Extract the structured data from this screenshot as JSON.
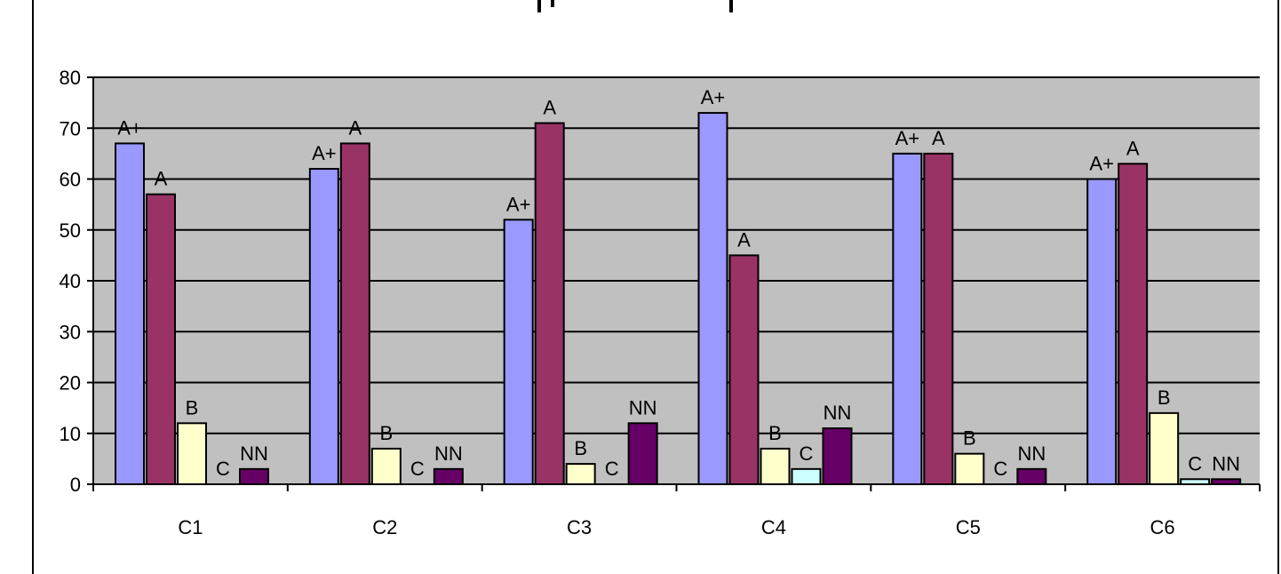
{
  "chart_data": {
    "type": "bar",
    "categories": [
      "C1",
      "C2",
      "C3",
      "C4",
      "C5",
      "C6"
    ],
    "series": [
      {
        "label": "A+",
        "color": "#9999ff",
        "values": [
          67,
          62,
          52,
          73,
          65,
          60
        ]
      },
      {
        "label": "A",
        "color": "#993366",
        "values": [
          57,
          67,
          71,
          45,
          65,
          63
        ]
      },
      {
        "label": "B",
        "color": "#ffffcc",
        "values": [
          12,
          7,
          4,
          7,
          6,
          14
        ]
      },
      {
        "label": "C",
        "color": "#ccffff",
        "values": [
          0,
          0,
          0,
          3,
          0,
          1
        ]
      },
      {
        "label": "NN",
        "color": "#660066",
        "values": [
          3,
          3,
          12,
          11,
          3,
          1
        ]
      }
    ],
    "ylim": [
      0,
      80
    ],
    "yticks": [
      0,
      10,
      20,
      30,
      40,
      50,
      60,
      70,
      80
    ],
    "grid": true,
    "plot_background": "#c0c0c0",
    "legend": "none"
  }
}
